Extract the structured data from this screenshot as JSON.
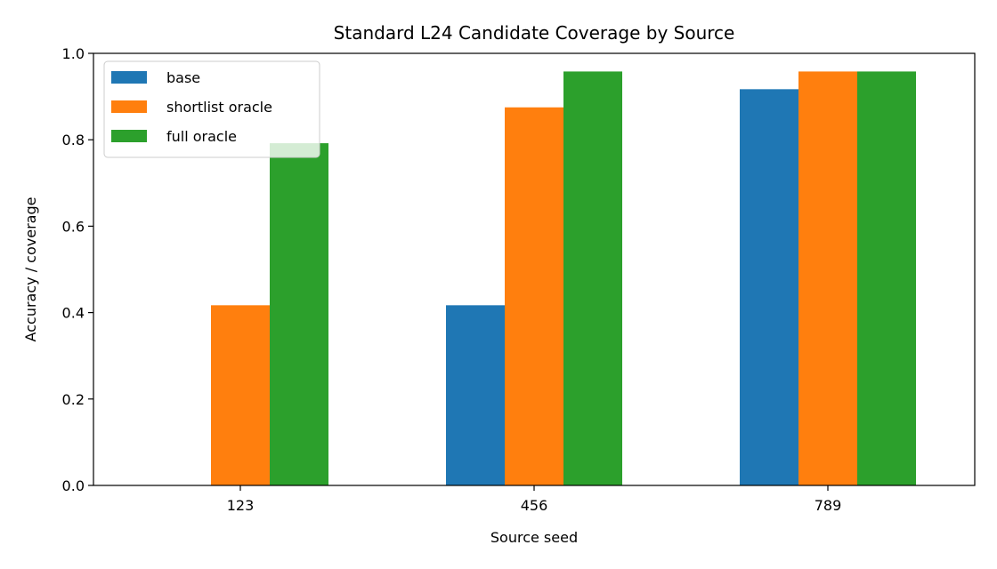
{
  "chart_data": {
    "type": "bar",
    "title": "Standard L24 Candidate Coverage by Source",
    "xlabel": "Source seed",
    "ylabel": "Accuracy / coverage",
    "categories": [
      "123",
      "456",
      "789"
    ],
    "ylim": [
      0,
      1.0
    ],
    "yticks": [
      "0.0",
      "0.2",
      "0.4",
      "0.6",
      "0.8",
      "1.0"
    ],
    "legend_position": "top-left",
    "grid": false,
    "series": [
      {
        "name": "base",
        "color": "#1f77b4",
        "values": [
          0.0,
          0.417,
          0.917
        ]
      },
      {
        "name": "shortlist oracle",
        "color": "#ff7f0e",
        "values": [
          0.417,
          0.875,
          0.958
        ]
      },
      {
        "name": "full oracle",
        "color": "#2ca02c",
        "values": [
          0.792,
          0.958,
          0.958
        ]
      }
    ]
  }
}
